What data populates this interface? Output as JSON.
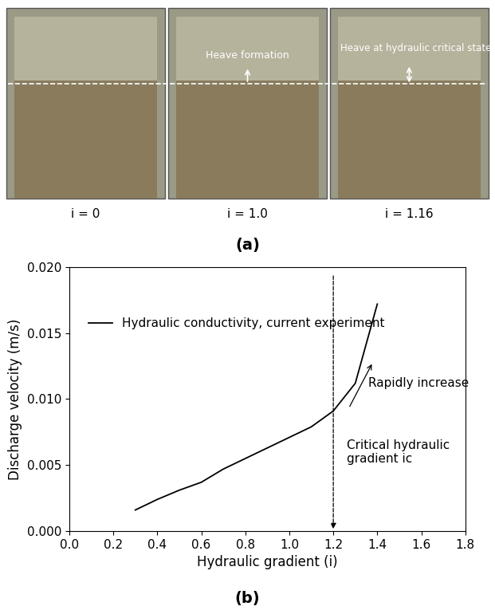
{
  "panel_a": {
    "label": "(a)",
    "images": [
      {
        "caption": "i = 0"
      },
      {
        "caption": "i = 1.0",
        "annotation": "Heave formation"
      },
      {
        "caption": "i = 1.16",
        "annotation": "Heave at hydraulic critical state"
      }
    ]
  },
  "panel_b_label": "(b)",
  "chart_data": {
    "type": "line",
    "x_label": "Hydraulic gradient (i)",
    "y_label": "Discharge velocity (m/s)",
    "series": [
      {
        "name": "Hydraulic conductivity, current experiment",
        "color": "#000000",
        "x": [
          0.3,
          0.4,
          0.5,
          0.6,
          0.7,
          0.8,
          0.9,
          1.0,
          1.1,
          1.2,
          1.3,
          1.4
        ],
        "values": [
          0.0016,
          0.0024,
          0.0031,
          0.0037,
          0.0047,
          0.0055,
          0.0063,
          0.0071,
          0.0079,
          0.0091,
          0.0112,
          0.0172
        ]
      }
    ],
    "reference_line": {
      "x": 1.2,
      "label": "Critical hydraulic gradient ic"
    },
    "annotations": [
      "Rapidly increase"
    ],
    "xlim": [
      0.0,
      1.8
    ],
    "xticks": [
      0.0,
      0.2,
      0.4,
      0.6,
      0.8,
      1.0,
      1.2,
      1.4,
      1.6,
      1.8
    ],
    "ylim": [
      0.0,
      0.02
    ],
    "yticks": [
      {
        "value": 0.0,
        "label": "0.000"
      },
      {
        "value": 0.005,
        "label": "0.005"
      },
      {
        "value": 0.01,
        "label": "0.010"
      },
      {
        "value": 0.015,
        "label": "0.015"
      },
      {
        "value": 0.02,
        "label": "0.020"
      }
    ],
    "legend": "upper left",
    "grid": false
  }
}
